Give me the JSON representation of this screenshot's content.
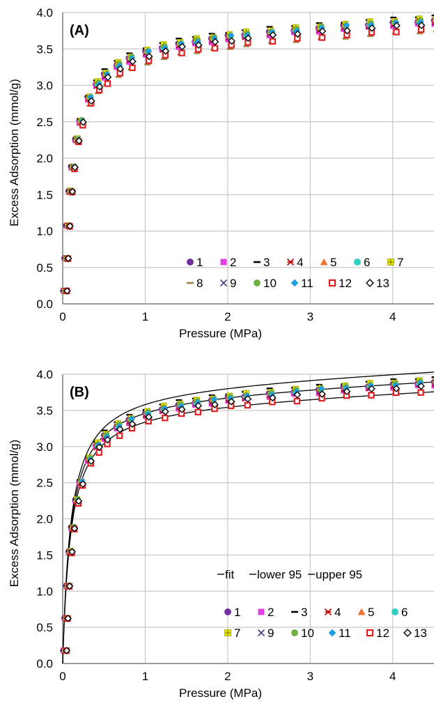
{
  "chart_data": [
    {
      "type": "scatter",
      "panel_label": "(A)",
      "xlabel": "Pressure (MPa)",
      "ylabel": "Excess Adsorption (mmol/g)",
      "xlim": [
        0,
        4.5
      ],
      "ylim": [
        0,
        4.0
      ],
      "x_ticks": [
        "0",
        "1",
        "2",
        "3",
        "4"
      ],
      "y_ticks": [
        "0.0",
        "0.5",
        "1.0",
        "1.5",
        "2.0",
        "2.5",
        "3.0",
        "3.5",
        "4.0"
      ],
      "grid": true,
      "legend_placement": "bottom-right",
      "legend_rows": [
        [
          "1",
          "2",
          "3",
          "4",
          "5",
          "6",
          "7"
        ],
        [
          "8",
          "9",
          "10",
          "11",
          "12",
          "13"
        ]
      ],
      "model": {
        "form": "langmuir",
        "qm": 3.75,
        "b": 10,
        "slope": 0.05
      },
      "x": [
        0.005,
        0.02,
        0.04,
        0.07,
        0.1,
        0.15,
        0.2,
        0.3,
        0.4,
        0.5,
        0.65,
        0.8,
        1.0,
        1.2,
        1.4,
        1.6,
        1.8,
        2.0,
        2.2,
        2.5,
        2.8,
        3.1,
        3.4,
        3.7,
        4.0,
        4.3,
        4.5
      ],
      "series": [
        {
          "name": "1",
          "marker": "circle",
          "color": "#7030a0",
          "offset": 0.0
        },
        {
          "name": "2",
          "marker": "square",
          "color": "#e040e0",
          "offset": -0.04
        },
        {
          "name": "3",
          "marker": "dash",
          "color": "#000000",
          "offset": 0.06
        },
        {
          "name": "4",
          "marker": "asterisk",
          "color": "#c00000",
          "offset": -0.02
        },
        {
          "name": "5",
          "marker": "triangle",
          "color": "#f07030",
          "offset": 0.02
        },
        {
          "name": "6",
          "marker": "circle",
          "color": "#30d0c0",
          "offset": 0.0
        },
        {
          "name": "7",
          "marker": "plusbox",
          "color": "#e8e800",
          "offset": 0.03
        },
        {
          "name": "8",
          "marker": "dash",
          "color": "#a08040",
          "offset": -0.16
        },
        {
          "name": "9",
          "marker": "cross",
          "color": "#404080",
          "offset": -0.01
        },
        {
          "name": "10",
          "marker": "circle",
          "color": "#70b040",
          "offset": 0.01
        },
        {
          "name": "11",
          "marker": "diamond",
          "color": "#20a0e0",
          "offset": 0.0
        },
        {
          "name": "12",
          "marker": "opensquare",
          "color": "#e02020",
          "offset": -0.12
        },
        {
          "name": "13",
          "marker": "opendiamond",
          "color": "#000000",
          "offset": -0.05
        }
      ]
    },
    {
      "type": "scatter",
      "panel_label": "(B)",
      "xlabel": "Pressure (MPa)",
      "ylabel": "Excess Adsorption (mmol/g)",
      "xlim": [
        0,
        4.5
      ],
      "ylim": [
        0,
        4.0
      ],
      "x_ticks": [
        "0",
        "1",
        "2",
        "3",
        "4"
      ],
      "y_ticks": [
        "0.0",
        "0.5",
        "1.0",
        "1.5",
        "2.0",
        "2.5",
        "3.0",
        "3.5",
        "4.0"
      ],
      "grid": true,
      "legend_placement": "bottom-right",
      "fit_legend": [
        "fit",
        "lower 95",
        "upper 95"
      ],
      "legend_rows": [
        [
          "1",
          "2",
          "3",
          "4",
          "5",
          "6"
        ],
        [
          "7",
          "9",
          "10",
          "11",
          "12",
          "13"
        ]
      ],
      "model": {
        "form": "langmuir",
        "qm": 3.75,
        "b": 10,
        "slope": 0.05
      },
      "fit_lines": [
        {
          "name": "fit",
          "scale": 1.0
        },
        {
          "name": "lower 95",
          "scale": 0.965
        },
        {
          "name": "upper 95",
          "scale": 1.035
        }
      ],
      "x": [
        0.005,
        0.02,
        0.04,
        0.07,
        0.1,
        0.15,
        0.2,
        0.3,
        0.4,
        0.5,
        0.65,
        0.8,
        1.0,
        1.2,
        1.4,
        1.6,
        1.8,
        2.0,
        2.2,
        2.5,
        2.8,
        3.1,
        3.4,
        3.7,
        4.0,
        4.3,
        4.5
      ],
      "series": [
        {
          "name": "1",
          "marker": "circle",
          "color": "#7030a0",
          "offset": 0.0
        },
        {
          "name": "2",
          "marker": "square",
          "color": "#e040e0",
          "offset": -0.04
        },
        {
          "name": "3",
          "marker": "dash",
          "color": "#000000",
          "offset": 0.06
        },
        {
          "name": "4",
          "marker": "asterisk",
          "color": "#c00000",
          "offset": -0.02
        },
        {
          "name": "5",
          "marker": "triangle",
          "color": "#f07030",
          "offset": 0.02
        },
        {
          "name": "6",
          "marker": "circle",
          "color": "#30d0c0",
          "offset": 0.0
        },
        {
          "name": "7",
          "marker": "plusbox",
          "color": "#e8e800",
          "offset": 0.03
        },
        {
          "name": "9",
          "marker": "cross",
          "color": "#404080",
          "offset": -0.01
        },
        {
          "name": "10",
          "marker": "circle",
          "color": "#70b040",
          "offset": 0.01
        },
        {
          "name": "11",
          "marker": "diamond",
          "color": "#20a0e0",
          "offset": 0.0
        },
        {
          "name": "12",
          "marker": "opensquare",
          "color": "#e02020",
          "offset": -0.12
        },
        {
          "name": "13",
          "marker": "opendiamond",
          "color": "#000000",
          "offset": -0.05
        }
      ]
    }
  ]
}
